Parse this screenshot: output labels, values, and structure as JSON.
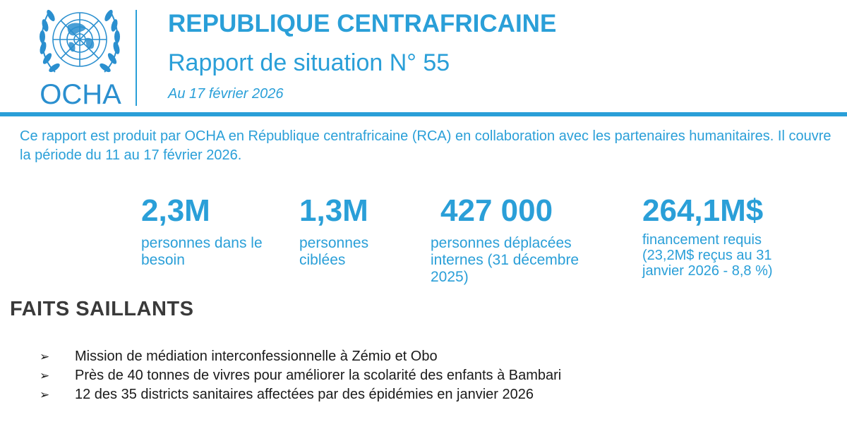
{
  "header": {
    "logo_text": "OCHA",
    "title": "REPUBLIQUE CENTRAFRICAINE",
    "subtitle": "Rapport de situation N° 55",
    "date": "Au 17 février 2026"
  },
  "intro": "Ce rapport est produit par OCHA en République centrafricaine (RCA) en collaboration avec les partenaires humanitaires. Il couvre la période du 11 au 17 février 2026.",
  "key_figures": [
    {
      "value": "2,3M",
      "label": "personnes dans le besoin"
    },
    {
      "value": "1,3M",
      "label": "personnes ciblées"
    },
    {
      "value": "427 000",
      "label": "personnes déplacées internes (31 décembre 2025)"
    },
    {
      "value": "264,1M$",
      "label": "financement requis (23,2M$ reçus au 31 janvier 2026 - 8,8 %)"
    }
  ],
  "highlights": {
    "title": "FAITS SAILLANTS",
    "bullet_glyph": "➢",
    "items": [
      "Mission de médiation interconfessionnelle à Zémio et Obo",
      "Près de 40 tonnes de vivres pour améliorer la scolarité des enfants à Bambari",
      "12 des 35 districts sanitaires affectées par des épidémies en janvier 2026"
    ]
  },
  "colors": {
    "accent": "#2a9fd8",
    "heading": "#3a3a3a",
    "text": "#1a1a1a"
  }
}
